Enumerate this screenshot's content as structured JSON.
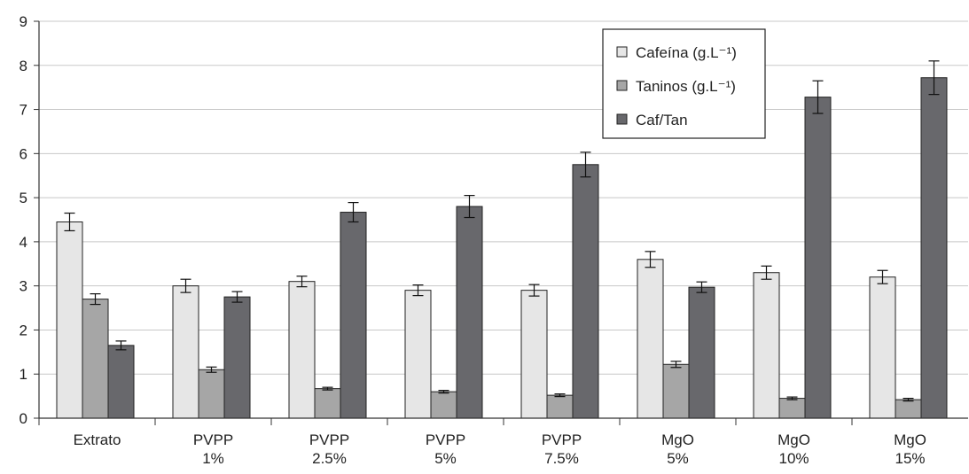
{
  "chart_data": {
    "type": "bar",
    "categories": [
      [
        "Extrato"
      ],
      [
        "PVPP",
        "1%"
      ],
      [
        "PVPP",
        "2.5%"
      ],
      [
        "PVPP",
        "5%"
      ],
      [
        "PVPP",
        "7.5%"
      ],
      [
        "MgO",
        "5%"
      ],
      [
        "MgO",
        "10%"
      ],
      [
        "MgO",
        "15%"
      ]
    ],
    "series": [
      {
        "name": "Cafeína (g.L⁻¹)",
        "color": "#e6e6e6",
        "values": [
          4.45,
          3.0,
          3.1,
          2.9,
          2.9,
          3.6,
          3.3,
          3.2
        ],
        "errors": [
          0.2,
          0.15,
          0.12,
          0.12,
          0.13,
          0.18,
          0.15,
          0.15
        ]
      },
      {
        "name": "Taninos (g.L⁻¹)",
        "color": "#a6a6a6",
        "values": [
          2.7,
          1.1,
          0.67,
          0.6,
          0.52,
          1.22,
          0.45,
          0.42
        ],
        "errors": [
          0.12,
          0.06,
          0.03,
          0.03,
          0.03,
          0.07,
          0.03,
          0.03
        ]
      },
      {
        "name": "Caf/Tan",
        "color": "#68686c",
        "values": [
          1.65,
          2.75,
          4.67,
          4.8,
          5.75,
          2.97,
          7.28,
          7.72
        ],
        "errors": [
          0.1,
          0.12,
          0.22,
          0.25,
          0.28,
          0.12,
          0.37,
          0.38
        ]
      }
    ],
    "ylim": [
      0,
      9
    ],
    "yticks": [
      0,
      1,
      2,
      3,
      4,
      5,
      6,
      7,
      8,
      9
    ],
    "grid": true,
    "legend_position": "top-right",
    "title": "",
    "xlabel": "",
    "ylabel": ""
  }
}
